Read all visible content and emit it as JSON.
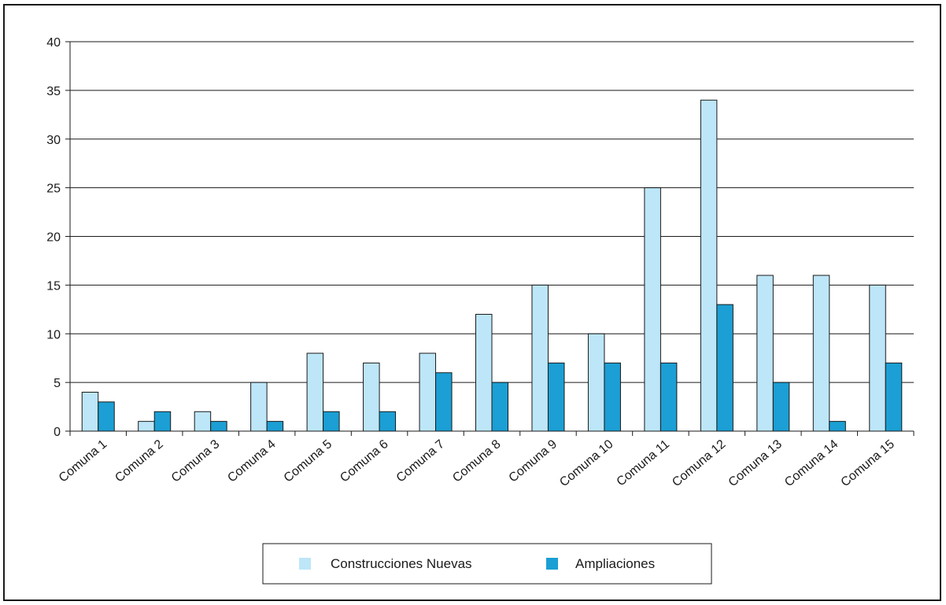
{
  "chart_data": {
    "type": "bar",
    "title": "",
    "xlabel": "",
    "ylabel": "",
    "ylim": [
      0,
      40
    ],
    "yticks": [
      0,
      5,
      10,
      15,
      20,
      25,
      30,
      35,
      40
    ],
    "grid": true,
    "legend_position": "bottom",
    "categories": [
      "Comuna 1",
      "Comuna 2",
      "Comuna 3",
      "Comuna 4",
      "Comuna 5",
      "Comuna 6",
      "Comuna 7",
      "Comuna 8",
      "Comuna 9",
      "Comuna 10",
      "Comuna 11",
      "Comuna 12",
      "Comuna 13",
      "Comuna 14",
      "Comuna 15"
    ],
    "series": [
      {
        "name": "Construcciones Nuevas",
        "color": "#bde6f8",
        "values": [
          4,
          1,
          2,
          5,
          8,
          7,
          8,
          12,
          15,
          10,
          25,
          34,
          16,
          16,
          15
        ]
      },
      {
        "name": "Ampliaciones",
        "color": "#1b9fd4",
        "values": [
          3,
          2,
          1,
          1,
          2,
          2,
          6,
          5,
          7,
          7,
          7,
          13,
          5,
          1,
          7
        ]
      }
    ]
  }
}
